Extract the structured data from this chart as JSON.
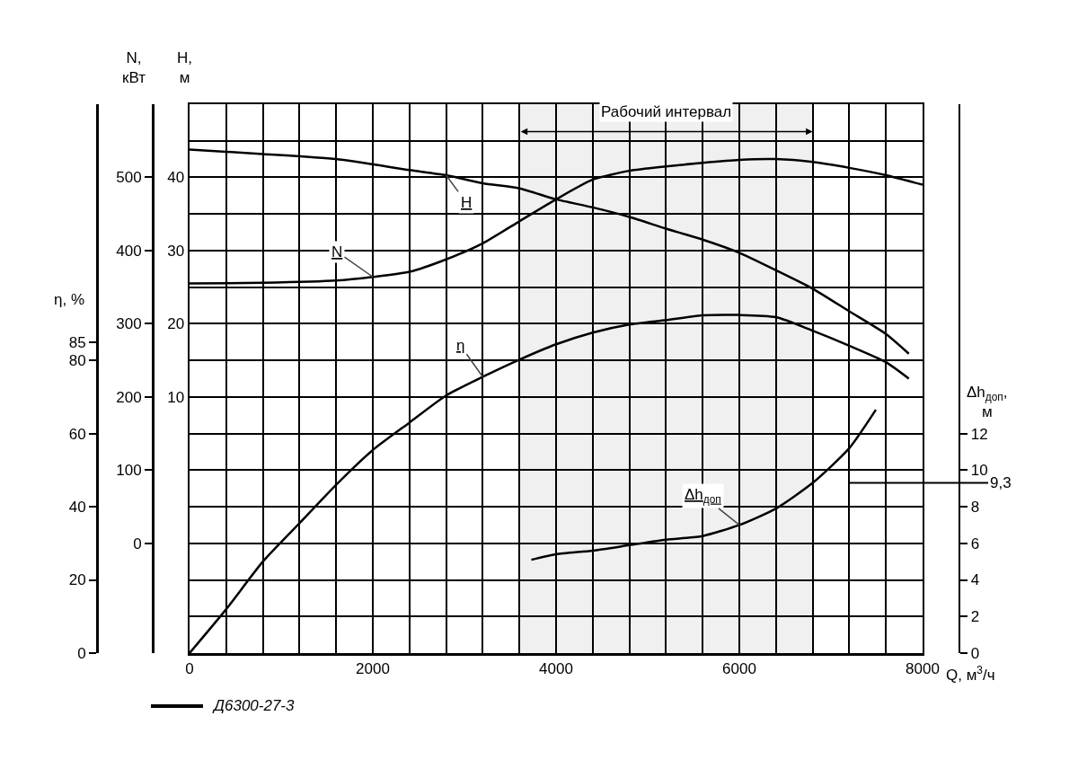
{
  "chart_data": [
    {
      "type": "line",
      "xlabel": "Q, м$^{3}$/ч",
      "ylabel": "H, м",
      "y2label": "N, кВт",
      "y3label": "η, %",
      "xlim": [
        0,
        8000
      ],
      "xticks": [
        0,
        {
          "value": 400,
          "label": null
        },
        {
          "value": 800,
          "label": null
        },
        {
          "value": 1200,
          "label": null
        },
        {
          "value": 1600,
          "label": null
        },
        2000,
        {
          "value": 2400,
          "label": null
        },
        {
          "value": 2800,
          "label": null
        },
        {
          "value": 3200,
          "label": null
        },
        {
          "value": 3600,
          "label": null
        },
        4000,
        {
          "value": 4400,
          "label": null
        },
        {
          "value": 4800,
          "label": null
        },
        {
          "value": 5200,
          "label": null
        },
        {
          "value": 5600,
          "label": null
        },
        6000,
        {
          "value": 6400,
          "label": null
        },
        {
          "value": 6800,
          "label": null
        },
        {
          "value": 7200,
          "label": null
        },
        {
          "value": 7600,
          "label": null
        },
        8000
      ],
      "ylim": [
        -25,
        50
      ],
      "yticks": [
        {
          "value": -20,
          "label": null
        },
        {
          "value": -15,
          "label": null
        },
        {
          "value": -10,
          "label": null
        },
        {
          "value": -5,
          "label": null
        },
        {
          "value": 0,
          "label": null
        },
        {
          "value": 5,
          "label": null
        },
        10,
        {
          "value": 15,
          "label": null
        },
        20,
        {
          "value": 25,
          "label": null
        },
        30,
        {
          "value": 35,
          "label": null
        },
        40,
        {
          "value": 45,
          "label": null
        }
      ],
      "y2lim": [
        -150,
        600
      ],
      "y2ticks": [
        0,
        100,
        200,
        300,
        400,
        500
      ],
      "y3lim": [
        0,
        150
      ],
      "y3ticks": [
        0,
        20,
        40,
        60,
        80,
        85
      ],
      "grid": "xy",
      "legend": false,
      "line_style": "solid",
      "marker": "none",
      "series": [
        {
          "name": "H",
          "color": "#000000",
          "axis": "y",
          "x": [
            0,
            800,
            1600,
            2400,
            2800,
            3200,
            3600,
            4000,
            4400,
            4800,
            5200,
            5600,
            6000,
            6400,
            6800,
            7200,
            7600,
            7850
          ],
          "values": [
            43.8,
            43.2,
            42.5,
            41.0,
            40.3,
            39.2,
            38.5,
            37.0,
            35.9,
            34.6,
            33.0,
            31.5,
            29.7,
            27.3,
            24.8,
            21.7,
            18.6,
            15.9
          ]
        },
        {
          "name": "N",
          "color": "#000000",
          "axis": "y2",
          "x": [
            0,
            800,
            1600,
            2000,
            2400,
            2800,
            3200,
            3600,
            4000,
            4400,
            4800,
            5200,
            5600,
            6000,
            6400,
            6800,
            7200,
            7600,
            8000
          ],
          "values": [
            355,
            356,
            359,
            364,
            371,
            388,
            410,
            440,
            470,
            497,
            509,
            515,
            520,
            524,
            525,
            521,
            513,
            503,
            490
          ]
        },
        {
          "name": "η",
          "color": "#000000",
          "axis": "y3",
          "x": [
            0,
            400,
            800,
            1200,
            1600,
            2000,
            2400,
            2800,
            3200,
            3600,
            4000,
            4400,
            4800,
            5200,
            5600,
            6000,
            6400,
            6800,
            7200,
            7600,
            7850
          ],
          "values": [
            0,
            12,
            25,
            35.5,
            46,
            55.5,
            63,
            70.4,
            75.5,
            80.2,
            84.4,
            87.6,
            89.8,
            91,
            92.3,
            92.4,
            91.8,
            88.1,
            84,
            79.5,
            75
          ]
        }
      ],
      "bands": [
        {
          "axis": "x",
          "from": 3600,
          "to": 6800,
          "label": "Рабочий интервал"
        }
      ],
      "annotations": [
        "Д6300-27-3"
      ]
    },
    {
      "type": "line",
      "ylabel": "Δh$_{доп}$, м",
      "xlim": [
        0,
        8000
      ],
      "ylim": [
        0,
        30
      ],
      "yticks": [
        0,
        2,
        4,
        6,
        8,
        10,
        12
      ],
      "tick_labels": "y",
      "legend": false,
      "line_style": "solid",
      "marker": "none",
      "series": [
        {
          "name": "Δh$_{доп}$",
          "color": "#000000",
          "x": [
            3730,
            4000,
            4400,
            4800,
            5200,
            5600,
            6000,
            6400,
            6800,
            7200,
            7490
          ],
          "values": [
            5.1,
            5.4,
            5.6,
            5.9,
            6.2,
            6.4,
            7.0,
            7.9,
            9.3,
            11.2,
            13.3
          ]
        }
      ],
      "ref_lines": [
        {
          "axis": "y",
          "value": 9.3,
          "label": "9,3"
        }
      ]
    }
  ]
}
